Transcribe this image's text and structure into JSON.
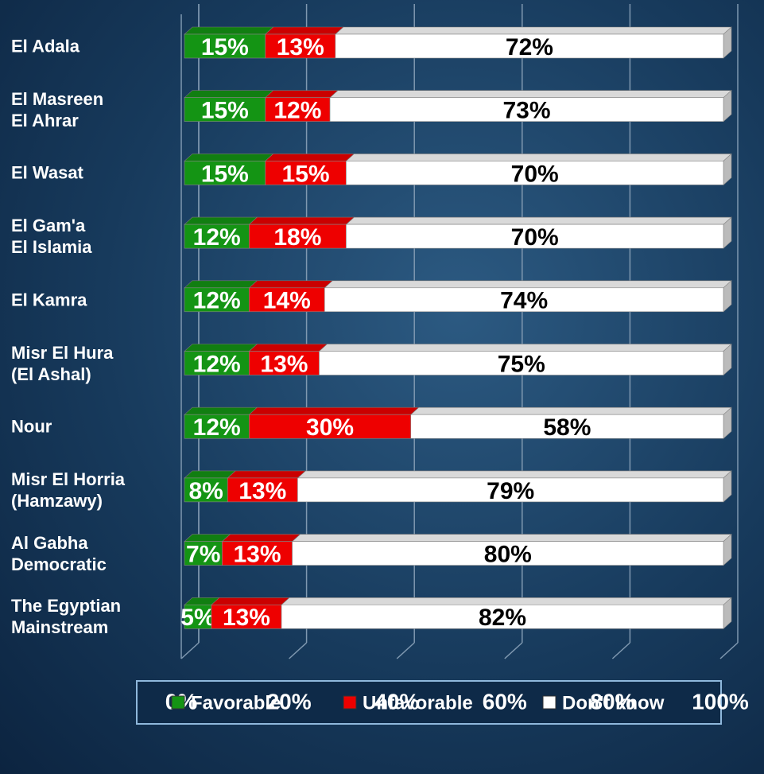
{
  "chart_data": {
    "type": "stacked-bar-3d",
    "categories": [
      "El Adala",
      "El Masreen\nEl Ahrar",
      "El Wasat",
      "El Gam'a\nEl Islamia",
      "El Kamra",
      "Misr El Hura\n(El Ashal)",
      "Nour",
      "Misr El Horria\n(Hamzawy)",
      "Al Gabha\nDemocratic",
      "The Egyptian\nMainstream"
    ],
    "series": [
      {
        "name": "Favorable",
        "color": "#149414",
        "label_color": "#ffffff",
        "values": [
          15,
          15,
          15,
          12,
          12,
          12,
          12,
          8,
          7,
          5
        ],
        "value_labels": [
          "15%",
          "15%",
          "15%",
          "12%",
          "12%",
          "12%",
          "12%",
          "8%",
          "7%",
          "5%"
        ]
      },
      {
        "name": "Unfavorable",
        "color": "#ee0000",
        "label_color": "#ffffff",
        "values": [
          13,
          12,
          15,
          18,
          14,
          13,
          30,
          13,
          13,
          13
        ],
        "value_labels": [
          "13%",
          "12%",
          "15%",
          "18%",
          "14%",
          "13%",
          "30%",
          "13%",
          "13%",
          "13%"
        ]
      },
      {
        "name": "Don't know",
        "color": "#ffffff",
        "label_color": "#000000",
        "values": [
          72,
          73,
          70,
          70,
          74,
          75,
          58,
          79,
          80,
          82
        ],
        "value_labels": [
          "72%",
          "73%",
          "70%",
          "70%",
          "74%",
          "75%",
          "58%",
          "79%",
          "80%",
          "82%"
        ]
      }
    ],
    "xlim": [
      0,
      100
    ],
    "xticks": [
      {
        "value": 0,
        "label": "0%"
      },
      {
        "value": 20,
        "label": "20%"
      },
      {
        "value": 40,
        "label": "40%"
      },
      {
        "value": 60,
        "label": "60%"
      },
      {
        "value": 80,
        "label": "80%"
      },
      {
        "value": 100,
        "label": "100%"
      }
    ],
    "grid": true,
    "legend": "bottom"
  }
}
